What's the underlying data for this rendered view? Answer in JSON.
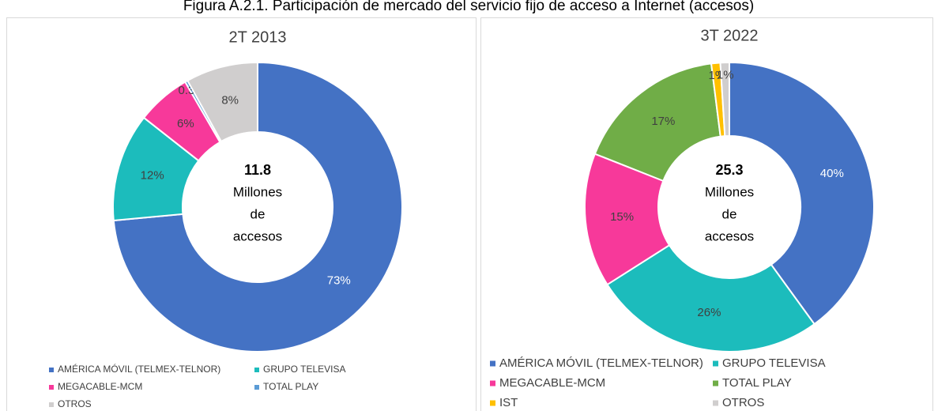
{
  "figure_title": "Figura A.2.1. Participación de mercado del servicio fijo de acceso a Internet (accesos)",
  "chart_data": [
    {
      "type": "donut",
      "title": "2T 2013",
      "categories": [
        "AMÉRICA MÓVIL (TELMEX-TELNOR)",
        "GRUPO TELEVISA",
        "MEGACABLE-MCM",
        "TOTAL PLAY",
        "OTROS"
      ],
      "values": [
        73,
        12,
        6,
        0.3,
        8
      ],
      "value_labels": [
        "73%",
        "12%",
        "6%",
        "0.3%",
        "8%"
      ],
      "colors": [
        "#4472c4",
        "#1cbcbc",
        "#f7399a",
        "#5b9bd5",
        "#d0cece"
      ],
      "center_value": 11.8,
      "center_text": [
        "Millones",
        "de",
        "accesos"
      ]
    },
    {
      "type": "donut",
      "title": "3T 2022",
      "categories": [
        "AMÉRICA MÓVIL (TELMEX-TELNOR)",
        "GRUPO TELEVISA",
        "MEGACABLE-MCM",
        "TOTAL PLAY",
        "IST",
        "OTROS"
      ],
      "values": [
        40,
        26,
        15,
        17,
        1,
        1
      ],
      "value_labels": [
        "40%",
        "26%",
        "15%",
        "17%",
        "1%",
        "1%"
      ],
      "colors": [
        "#4472c4",
        "#1cbcbc",
        "#f7399a",
        "#70ad47",
        "#ffc000",
        "#d0cece"
      ],
      "center_value": 25.3,
      "center_text": [
        "Millones",
        "de",
        "accesos"
      ]
    }
  ]
}
